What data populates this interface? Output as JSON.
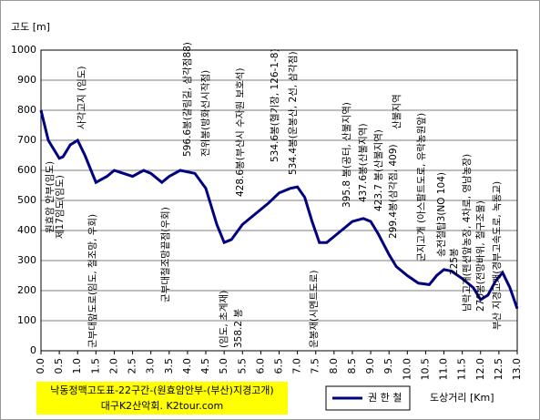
{
  "chart_data": {
    "type": "line",
    "y_label": "고도 [m]",
    "x_label": "도상거리 [Km]",
    "footer": [
      "낙동정맥고도표-22구간-(원효암안부-(부산)지경고개)",
      "대구K2산악회. K2tour.com"
    ],
    "x": [
      0,
      0.2,
      0.5,
      0.6,
      0.8,
      1.0,
      1.2,
      1.5,
      1.8,
      2.0,
      2.5,
      2.8,
      3.0,
      3.3,
      3.5,
      3.8,
      4.2,
      4.5,
      4.8,
      5.0,
      5.2,
      5.5,
      6.0,
      6.2,
      6.5,
      6.8,
      7.0,
      7.2,
      7.4,
      7.6,
      7.8,
      8.0,
      8.2,
      8.5,
      8.8,
      9.0,
      9.2,
      9.5,
      9.7,
      10.0,
      10.3,
      10.6,
      10.8,
      11.0,
      11.2,
      11.5,
      11.8,
      12.0,
      12.2,
      12.4,
      12.6,
      12.8,
      13.0
    ],
    "series": [
      {
        "name": "권 한 철",
        "color": "#000080",
        "values": [
          800,
          700,
          640,
          645,
          685,
          700,
          650,
          560,
          580,
          600,
          580,
          600,
          590,
          560,
          580,
          600,
          590,
          540,
          420,
          360,
          370,
          420,
          470,
          490,
          525,
          540,
          545,
          510,
          430,
          360,
          360,
          380,
          400,
          430,
          440,
          430,
          390,
          320,
          280,
          250,
          225,
          220,
          250,
          270,
          265,
          240,
          210,
          170,
          185,
          230,
          260,
          210,
          140
        ]
      }
    ],
    "xlim": [
      0,
      13
    ],
    "xticks": [
      {
        "value": 0,
        "label": "0.0"
      },
      0.5,
      {
        "value": 1,
        "label": "1.0"
      },
      1.5,
      {
        "value": 2,
        "label": "2.0"
      },
      2.5,
      {
        "value": 3,
        "label": "3.0"
      },
      3.5,
      {
        "value": 4,
        "label": "4.0"
      },
      4.5,
      {
        "value": 5,
        "label": "5.0"
      },
      5.5,
      {
        "value": 6,
        "label": "6.0"
      },
      6.5,
      {
        "value": 7,
        "label": "7.0"
      },
      7.5,
      {
        "value": 8,
        "label": "8.0"
      },
      8.5,
      {
        "value": 9,
        "label": "9.0"
      },
      9.5,
      {
        "value": 10,
        "label": "10.0"
      },
      10.5,
      {
        "value": 11,
        "label": "11.0"
      },
      11.5,
      {
        "value": 12,
        "label": "12.0"
      },
      12.5,
      {
        "value": 13,
        "label": "13.0"
      }
    ],
    "ylim": [
      0,
      1000
    ],
    "yticks": [
      0,
      100,
      200,
      300,
      400,
      500,
      600,
      700,
      800,
      900,
      1000
    ],
    "grid": true,
    "annotations": [
      "원효암 안부(임도)",
      "제17임도(임도)",
      "사각고지 (임도)",
      "군부대앞도로(임도, 철조망, 우회)",
      "군부대철조망끝점(우회)",
      "596.6봉(갈림길, 삼각점88)",
      "전위봉(방화선시작점)",
      "(임도, 초계재)",
      "358.2 봉",
      "428.6봉(부산시 수자원 보호석)",
      "534.6봉(헬기장, 126-1-8)",
      "534.4봉(운봉산, 2선, 삼각점)",
      "운봉재(시멘트도로)",
      "395.8 봉(공터, 산불지역)",
      "437.6봉(산불지역)",
      "423.7 봉(산불지역)",
      "299.4봉(삼각점, 409)",
      "산불지역",
      "군지고개 (아스팔트도로, 유락농원앞)",
      "송전철탑3(NO 104)",
      "225봉",
      "남락고개(펜션앞농장, 4차로, 영남농장)",
      "270봉(전망바위, 철구조물)",
      "부산 지경고개(경부고속도로, 녹동교)"
    ]
  }
}
